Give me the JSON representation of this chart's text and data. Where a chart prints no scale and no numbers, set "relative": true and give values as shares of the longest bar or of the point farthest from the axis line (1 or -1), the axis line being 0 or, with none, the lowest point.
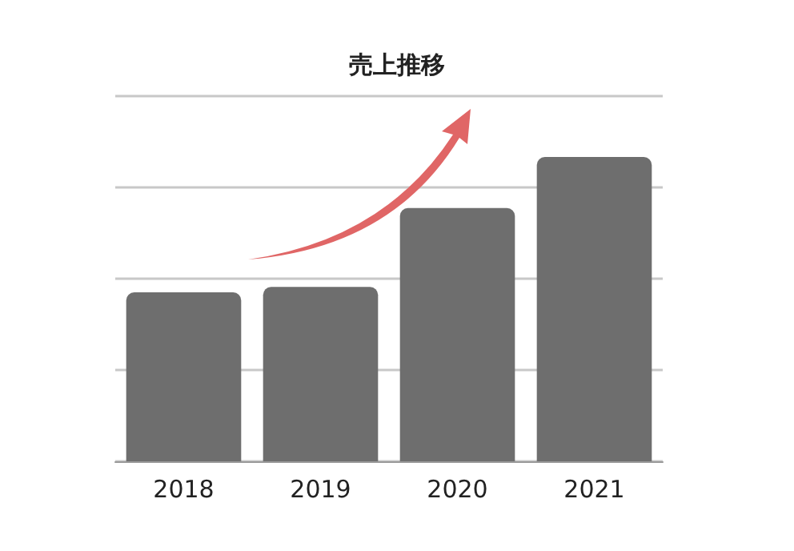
{
  "chart_data": {
    "type": "bar",
    "title": "売上推移",
    "categories": [
      "2018",
      "2019",
      "2020",
      "2021"
    ],
    "values": [
      0.555,
      0.573,
      0.832,
      1
    ],
    "color": "#6e6e6e",
    "relative": true,
    "grid": true
  }
}
